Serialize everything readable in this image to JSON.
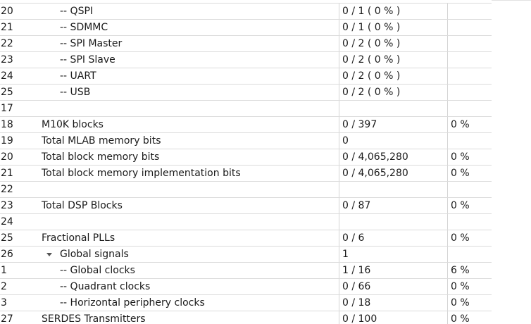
{
  "table": {
    "rows": [
      {
        "num": "20",
        "name": "-- QSPI",
        "usage": "0 / 1 ( 0 % )",
        "pct": "",
        "level": 1
      },
      {
        "num": "21",
        "name": "-- SDMMC",
        "usage": "0 / 1 ( 0 % )",
        "pct": "",
        "level": 1
      },
      {
        "num": "22",
        "name": "-- SPI Master",
        "usage": "0 / 2 ( 0 % )",
        "pct": "",
        "level": 1
      },
      {
        "num": "23",
        "name": "-- SPI Slave",
        "usage": "0 / 2 ( 0 % )",
        "pct": "",
        "level": 1
      },
      {
        "num": "24",
        "name": "-- UART",
        "usage": "0 / 2 ( 0 % )",
        "pct": "",
        "level": 1
      },
      {
        "num": "25",
        "name": "-- USB",
        "usage": "0 / 2 ( 0 % )",
        "pct": "",
        "level": 1
      },
      {
        "num": "17",
        "name": "",
        "usage": "",
        "pct": "",
        "level": 0
      },
      {
        "num": "18",
        "name": "M10K blocks",
        "usage": "0 / 397",
        "pct": "0 %",
        "level": 0
      },
      {
        "num": "19",
        "name": "Total MLAB memory bits",
        "usage": "0",
        "pct": "",
        "level": 0
      },
      {
        "num": "20",
        "name": "Total block memory bits",
        "usage": "0 / 4,065,280",
        "pct": "0 %",
        "level": 0
      },
      {
        "num": "21",
        "name": "Total block memory implementation bits",
        "usage": "0 / 4,065,280",
        "pct": "0 %",
        "level": 0
      },
      {
        "num": "22",
        "name": "",
        "usage": "",
        "pct": "",
        "level": 0
      },
      {
        "num": "23",
        "name": "Total DSP Blocks",
        "usage": "0 / 87",
        "pct": "0 %",
        "level": 0
      },
      {
        "num": "24",
        "name": "",
        "usage": "",
        "pct": "",
        "level": 0
      },
      {
        "num": "25",
        "name": "Fractional PLLs",
        "usage": "0 / 6",
        "pct": "0 %",
        "level": 0
      },
      {
        "num": "26",
        "name": "Global signals",
        "usage": "1",
        "pct": "",
        "level": 0,
        "expanded": true
      },
      {
        "num": "1",
        "name": "-- Global clocks",
        "usage": "1 / 16",
        "pct": "6 %",
        "level": 1
      },
      {
        "num": "2",
        "name": "-- Quadrant clocks",
        "usage": "0 / 66",
        "pct": "0 %",
        "level": 1
      },
      {
        "num": "3",
        "name": "-- Horizontal periphery clocks",
        "usage": "0 / 18",
        "pct": "0 %",
        "level": 1
      },
      {
        "num": "27",
        "name": "SERDES Transmitters",
        "usage": "0 / 100",
        "pct": "0 %",
        "level": 0
      }
    ]
  },
  "icons": {
    "expand": "caret-down-icon"
  }
}
